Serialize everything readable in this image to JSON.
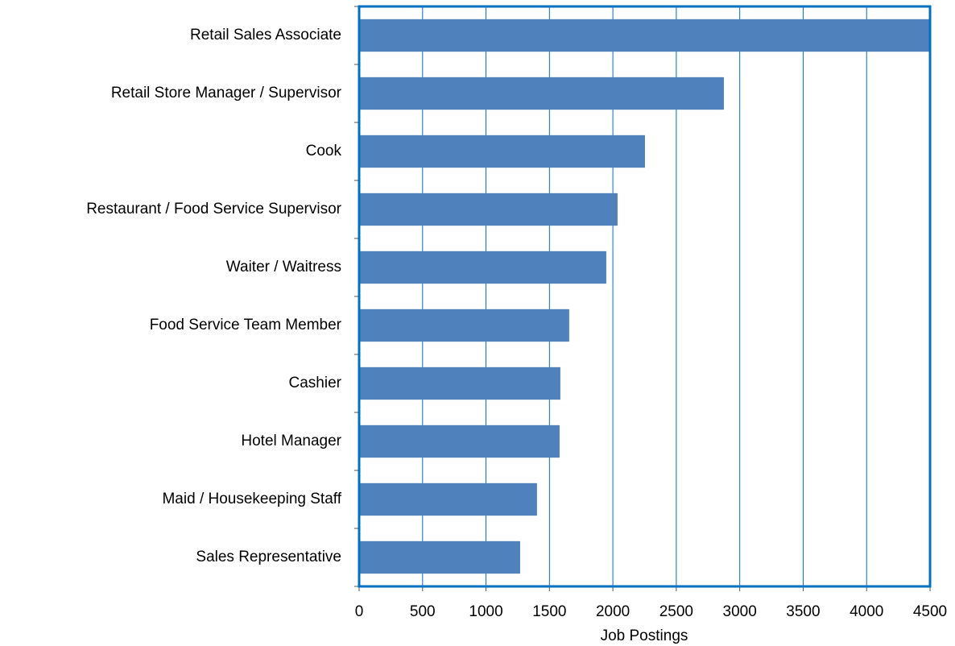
{
  "chart_data": {
    "type": "barh",
    "categories": [
      "Retail Sales Associate",
      "Retail Store Manager / Supervisor",
      "Cook",
      "Restaurant / Food Service Supervisor",
      "Waiter / Waitress",
      "Food Service Team Member",
      "Cashier",
      "Hotel Manager",
      "Maid / Housekeeping Staff",
      "Sales Representative"
    ],
    "values": [
      4500,
      2875,
      2253,
      2037,
      1948,
      1656,
      1586,
      1580,
      1402,
      1269
    ],
    "color": "#4f81bd",
    "xlabel": "Job Postings",
    "xlim": [
      0,
      4500
    ],
    "xticks": [
      0,
      500,
      1000,
      1500,
      2000,
      2500,
      3000,
      3500,
      4000,
      4500
    ],
    "grid": true
  }
}
